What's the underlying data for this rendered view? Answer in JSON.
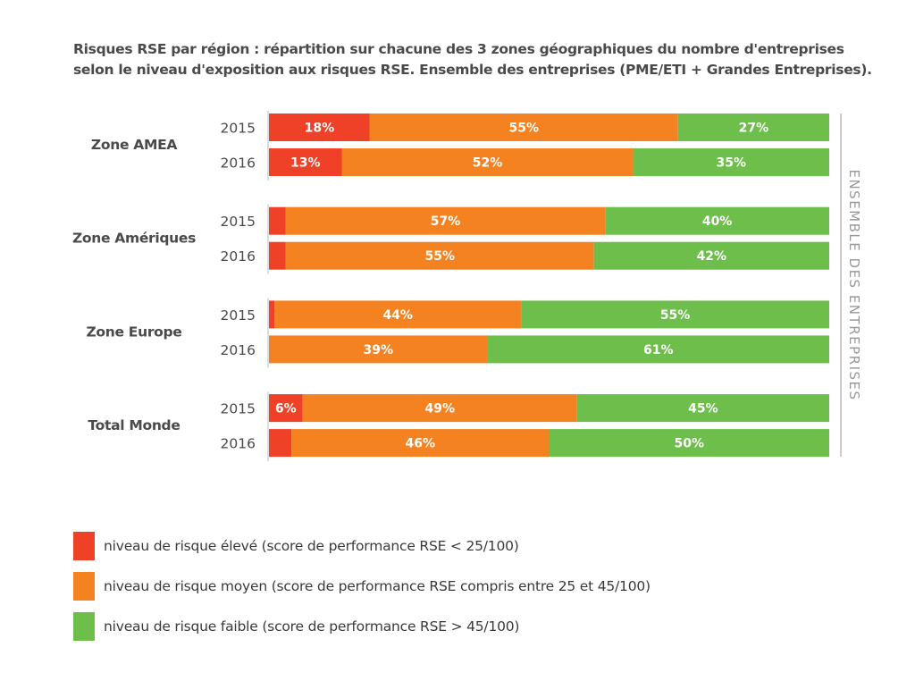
{
  "chart_data": {
    "type": "bar",
    "orientation": "horizontal",
    "stacked": true,
    "percent": true,
    "title": "Risques RSE par région : répartition sur chacune des 3 zones géographiques du nombre d'entreprises selon le niveau d'exposition aux risques RSE. Ensemble des entreprises (PME/ETI + Grandes Entreprises).",
    "side_label": "ENSEMBLE DES ENTREPRISES",
    "xlim": [
      0,
      100
    ],
    "grid": false,
    "legend_position": "bottom-left",
    "groups": [
      {
        "name": "Zone AMEA",
        "rows": [
          {
            "year": "2015",
            "values": [
              18,
              55,
              27
            ]
          },
          {
            "year": "2016",
            "values": [
              13,
              52,
              35
            ]
          }
        ]
      },
      {
        "name": "Zone Amériques",
        "rows": [
          {
            "year": "2015",
            "values": [
              3,
              57,
              40
            ]
          },
          {
            "year": "2016",
            "values": [
              3,
              55,
              42
            ]
          }
        ]
      },
      {
        "name": "Zone Europe",
        "rows": [
          {
            "year": "2015",
            "values": [
              1,
              44,
              55
            ]
          },
          {
            "year": "2016",
            "values": [
              0,
              39,
              61
            ]
          }
        ]
      },
      {
        "name": "Total Monde",
        "rows": [
          {
            "year": "2015",
            "values": [
              6,
              49,
              45
            ]
          },
          {
            "year": "2016",
            "values": [
              4,
              46,
              50
            ]
          }
        ]
      }
    ],
    "series": [
      {
        "name": "niveau de risque élevé (score de performance RSE < 25/100)",
        "color": "#EE4127"
      },
      {
        "name": "niveau de risque moyen (score de performance RSE compris entre 25 et 45/100)",
        "color": "#F58220"
      },
      {
        "name": "niveau de risque faible (score de performance RSE > 45/100)",
        "color": "#6DBE4B"
      }
    ]
  }
}
